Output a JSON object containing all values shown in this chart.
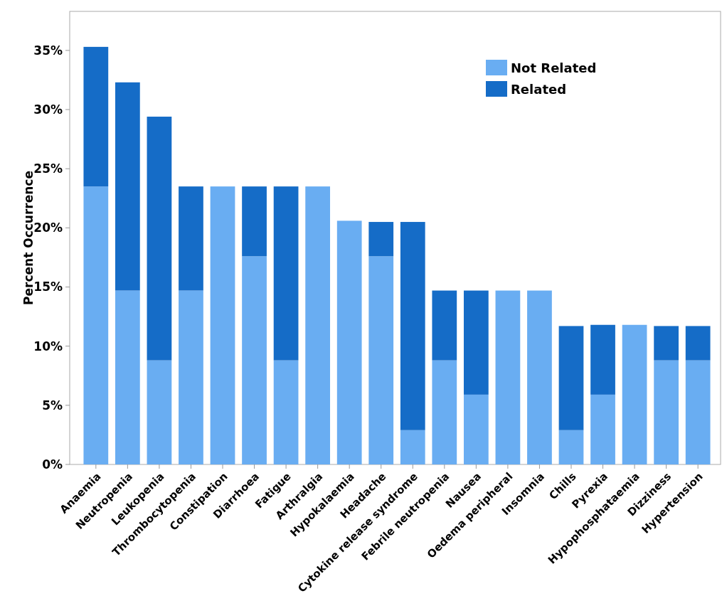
{
  "chart_data": {
    "type": "bar",
    "stacked": true,
    "ylabel": "Percent Occurrence",
    "categories": [
      "Anaemia",
      "Neutropenia",
      "Leukopenia",
      "Thrombocytopenia",
      "Constipation",
      "Diarrhoea",
      "Fatigue",
      "Arthralgia",
      "Hypokalaemia",
      "Headache",
      "Cytokine release syndrome",
      "Febrile neutropenia",
      "Nausea",
      "Oedema peripheral",
      "Insomnia",
      "Chills",
      "Pyrexia",
      "Hypophosphataemia",
      "Dizziness",
      "Hypertension"
    ],
    "series": [
      {
        "name": "Not Related",
        "color": "#69adf2",
        "values": [
          23.5,
          14.7,
          8.8,
          14.7,
          23.5,
          17.6,
          8.8,
          23.5,
          20.6,
          17.6,
          2.9,
          8.8,
          5.9,
          14.7,
          14.7,
          2.9,
          5.9,
          11.8,
          8.8,
          8.8
        ]
      },
      {
        "name": "Related",
        "color": "#156cc7",
        "values": [
          11.8,
          17.6,
          20.6,
          8.8,
          0,
          5.9,
          14.7,
          0,
          0,
          2.9,
          17.6,
          5.9,
          8.8,
          0,
          0,
          8.8,
          5.9,
          0,
          2.9,
          2.9
        ]
      }
    ],
    "ylim": [
      0,
      38.3
    ],
    "yticks": [
      {
        "value": 0,
        "label": "0%"
      },
      {
        "value": 5,
        "label": "5%"
      },
      {
        "value": 10,
        "label": "10%"
      },
      {
        "value": 15,
        "label": "15%"
      },
      {
        "value": 20,
        "label": "20%"
      },
      {
        "value": 25,
        "label": "25%"
      },
      {
        "value": 30,
        "label": "30%"
      },
      {
        "value": 35,
        "label": "35%"
      }
    ],
    "legend": "top right"
  }
}
